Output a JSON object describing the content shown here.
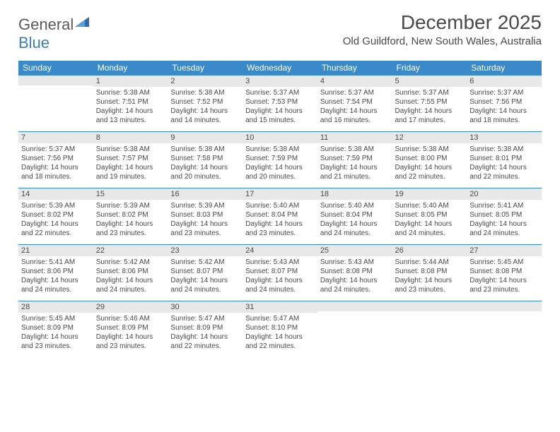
{
  "logo": {
    "text1": "General",
    "text2": "Blue"
  },
  "title": "December 2025",
  "location": "Old Guildford, New South Wales, Australia",
  "day_headers": [
    "Sunday",
    "Monday",
    "Tuesday",
    "Wednesday",
    "Thursday",
    "Friday",
    "Saturday"
  ],
  "header_bg": "#3a8ac9",
  "header_fg": "#ffffff",
  "day_label_bg": "#e8e8e8",
  "text_color": "#4a4a4a",
  "weeks": [
    [
      null,
      {
        "n": "1",
        "sr": "Sunrise: 5:38 AM",
        "ss": "Sunset: 7:51 PM",
        "dl1": "Daylight: 14 hours",
        "dl2": "and 13 minutes."
      },
      {
        "n": "2",
        "sr": "Sunrise: 5:38 AM",
        "ss": "Sunset: 7:52 PM",
        "dl1": "Daylight: 14 hours",
        "dl2": "and 14 minutes."
      },
      {
        "n": "3",
        "sr": "Sunrise: 5:37 AM",
        "ss": "Sunset: 7:53 PM",
        "dl1": "Daylight: 14 hours",
        "dl2": "and 15 minutes."
      },
      {
        "n": "4",
        "sr": "Sunrise: 5:37 AM",
        "ss": "Sunset: 7:54 PM",
        "dl1": "Daylight: 14 hours",
        "dl2": "and 16 minutes."
      },
      {
        "n": "5",
        "sr": "Sunrise: 5:37 AM",
        "ss": "Sunset: 7:55 PM",
        "dl1": "Daylight: 14 hours",
        "dl2": "and 17 minutes."
      },
      {
        "n": "6",
        "sr": "Sunrise: 5:37 AM",
        "ss": "Sunset: 7:56 PM",
        "dl1": "Daylight: 14 hours",
        "dl2": "and 18 minutes."
      }
    ],
    [
      {
        "n": "7",
        "sr": "Sunrise: 5:37 AM",
        "ss": "Sunset: 7:56 PM",
        "dl1": "Daylight: 14 hours",
        "dl2": "and 18 minutes."
      },
      {
        "n": "8",
        "sr": "Sunrise: 5:38 AM",
        "ss": "Sunset: 7:57 PM",
        "dl1": "Daylight: 14 hours",
        "dl2": "and 19 minutes."
      },
      {
        "n": "9",
        "sr": "Sunrise: 5:38 AM",
        "ss": "Sunset: 7:58 PM",
        "dl1": "Daylight: 14 hours",
        "dl2": "and 20 minutes."
      },
      {
        "n": "10",
        "sr": "Sunrise: 5:38 AM",
        "ss": "Sunset: 7:59 PM",
        "dl1": "Daylight: 14 hours",
        "dl2": "and 20 minutes."
      },
      {
        "n": "11",
        "sr": "Sunrise: 5:38 AM",
        "ss": "Sunset: 7:59 PM",
        "dl1": "Daylight: 14 hours",
        "dl2": "and 21 minutes."
      },
      {
        "n": "12",
        "sr": "Sunrise: 5:38 AM",
        "ss": "Sunset: 8:00 PM",
        "dl1": "Daylight: 14 hours",
        "dl2": "and 22 minutes."
      },
      {
        "n": "13",
        "sr": "Sunrise: 5:38 AM",
        "ss": "Sunset: 8:01 PM",
        "dl1": "Daylight: 14 hours",
        "dl2": "and 22 minutes."
      }
    ],
    [
      {
        "n": "14",
        "sr": "Sunrise: 5:39 AM",
        "ss": "Sunset: 8:02 PM",
        "dl1": "Daylight: 14 hours",
        "dl2": "and 22 minutes."
      },
      {
        "n": "15",
        "sr": "Sunrise: 5:39 AM",
        "ss": "Sunset: 8:02 PM",
        "dl1": "Daylight: 14 hours",
        "dl2": "and 23 minutes."
      },
      {
        "n": "16",
        "sr": "Sunrise: 5:39 AM",
        "ss": "Sunset: 8:03 PM",
        "dl1": "Daylight: 14 hours",
        "dl2": "and 23 minutes."
      },
      {
        "n": "17",
        "sr": "Sunrise: 5:40 AM",
        "ss": "Sunset: 8:04 PM",
        "dl1": "Daylight: 14 hours",
        "dl2": "and 23 minutes."
      },
      {
        "n": "18",
        "sr": "Sunrise: 5:40 AM",
        "ss": "Sunset: 8:04 PM",
        "dl1": "Daylight: 14 hours",
        "dl2": "and 24 minutes."
      },
      {
        "n": "19",
        "sr": "Sunrise: 5:40 AM",
        "ss": "Sunset: 8:05 PM",
        "dl1": "Daylight: 14 hours",
        "dl2": "and 24 minutes."
      },
      {
        "n": "20",
        "sr": "Sunrise: 5:41 AM",
        "ss": "Sunset: 8:05 PM",
        "dl1": "Daylight: 14 hours",
        "dl2": "and 24 minutes."
      }
    ],
    [
      {
        "n": "21",
        "sr": "Sunrise: 5:41 AM",
        "ss": "Sunset: 8:06 PM",
        "dl1": "Daylight: 14 hours",
        "dl2": "and 24 minutes."
      },
      {
        "n": "22",
        "sr": "Sunrise: 5:42 AM",
        "ss": "Sunset: 8:06 PM",
        "dl1": "Daylight: 14 hours",
        "dl2": "and 24 minutes."
      },
      {
        "n": "23",
        "sr": "Sunrise: 5:42 AM",
        "ss": "Sunset: 8:07 PM",
        "dl1": "Daylight: 14 hours",
        "dl2": "and 24 minutes."
      },
      {
        "n": "24",
        "sr": "Sunrise: 5:43 AM",
        "ss": "Sunset: 8:07 PM",
        "dl1": "Daylight: 14 hours",
        "dl2": "and 24 minutes."
      },
      {
        "n": "25",
        "sr": "Sunrise: 5:43 AM",
        "ss": "Sunset: 8:08 PM",
        "dl1": "Daylight: 14 hours",
        "dl2": "and 24 minutes."
      },
      {
        "n": "26",
        "sr": "Sunrise: 5:44 AM",
        "ss": "Sunset: 8:08 PM",
        "dl1": "Daylight: 14 hours",
        "dl2": "and 23 minutes."
      },
      {
        "n": "27",
        "sr": "Sunrise: 5:45 AM",
        "ss": "Sunset: 8:08 PM",
        "dl1": "Daylight: 14 hours",
        "dl2": "and 23 minutes."
      }
    ],
    [
      {
        "n": "28",
        "sr": "Sunrise: 5:45 AM",
        "ss": "Sunset: 8:09 PM",
        "dl1": "Daylight: 14 hours",
        "dl2": "and 23 minutes."
      },
      {
        "n": "29",
        "sr": "Sunrise: 5:46 AM",
        "ss": "Sunset: 8:09 PM",
        "dl1": "Daylight: 14 hours",
        "dl2": "and 23 minutes."
      },
      {
        "n": "30",
        "sr": "Sunrise: 5:47 AM",
        "ss": "Sunset: 8:09 PM",
        "dl1": "Daylight: 14 hours",
        "dl2": "and 22 minutes."
      },
      {
        "n": "31",
        "sr": "Sunrise: 5:47 AM",
        "ss": "Sunset: 8:10 PM",
        "dl1": "Daylight: 14 hours",
        "dl2": "and 22 minutes."
      },
      null,
      null,
      null
    ]
  ]
}
